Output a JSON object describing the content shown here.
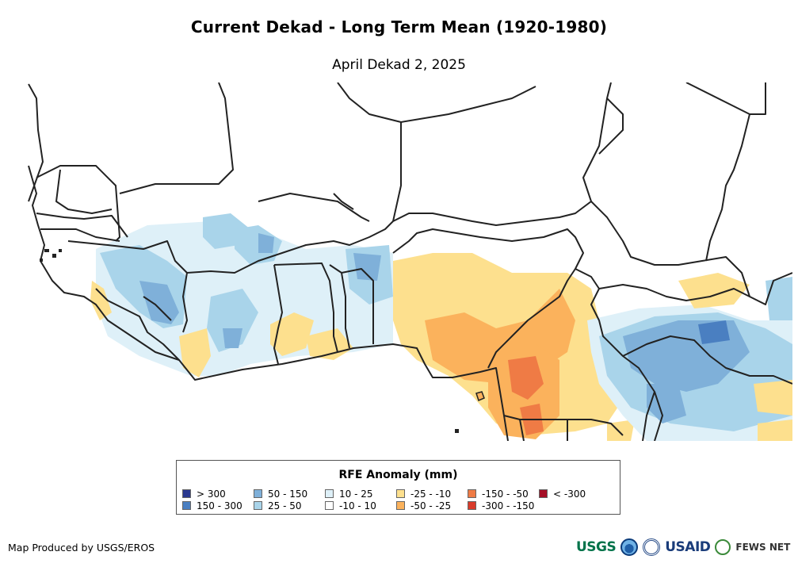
{
  "title": "Current Dekad - Long Term Mean (1920-1980)",
  "subtitle": "April Dekad 2, 2025",
  "legend": {
    "title": "RFE Anomaly (mm)",
    "items": [
      {
        "label": "> 300",
        "color": "#2b3990"
      },
      {
        "label": "150 - 300",
        "color": "#4a7fc1"
      },
      {
        "label": "50 - 150",
        "color": "#7fb0d9"
      },
      {
        "label": "25 - 50",
        "color": "#a9d4ea"
      },
      {
        "label": "10 - 25",
        "color": "#def0f8"
      },
      {
        "label": "-10 - 10",
        "color": "#ffffff"
      },
      {
        "label": "-25 - -10",
        "color": "#fde08e"
      },
      {
        "label": "-50 - -25",
        "color": "#fbb25c"
      },
      {
        "label": "-150 - -50",
        "color": "#ef7b45"
      },
      {
        "label": "-300 - -150",
        "color": "#d93b2b"
      },
      {
        "label": "< -300",
        "color": "#a50f26"
      }
    ]
  },
  "credit": "Map Produced by USGS/EROS",
  "logos": {
    "usgs": "USGS",
    "usaid": "USAID",
    "fews": "FEWS NET"
  }
}
